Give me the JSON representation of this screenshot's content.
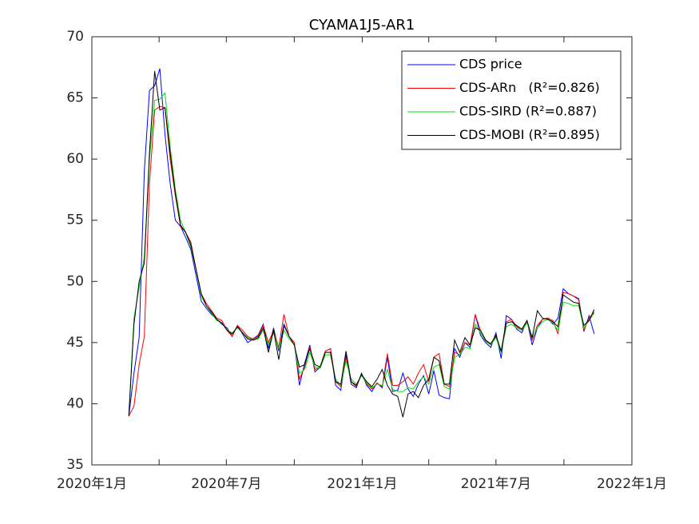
{
  "chart_data": {
    "type": "line",
    "title": "CYAMA1J5-AR1",
    "x": [
      50,
      57,
      64,
      71,
      78,
      85,
      92,
      99,
      106,
      113,
      120,
      127,
      134,
      141,
      148,
      155,
      162,
      169,
      176,
      183,
      190,
      197,
      204,
      211,
      218,
      225,
      232,
      239,
      246,
      253,
      260,
      267,
      274,
      281,
      288,
      295,
      302,
      309,
      316,
      323,
      330,
      337,
      344,
      351,
      358,
      365,
      372,
      379,
      386,
      393,
      400,
      407,
      414,
      421,
      428,
      435,
      442,
      449,
      456,
      463,
      470,
      477,
      484,
      491,
      498,
      505,
      512,
      519,
      526,
      533,
      540,
      547,
      554,
      561,
      568,
      575,
      582,
      589,
      596,
      603,
      610,
      617,
      624,
      631,
      638,
      645,
      652,
      659,
      666,
      673,
      680
    ],
    "series": [
      {
        "name": "CDS price",
        "color": "#0000ff",
        "values": [
          39.0,
          42.5,
          45.4,
          59.0,
          65.6,
          66.0,
          67.4,
          62.0,
          58.0,
          55.0,
          54.5,
          53.6,
          52.6,
          50.5,
          48.4,
          47.8,
          47.3,
          46.9,
          46.5,
          46.2,
          45.5,
          46.4,
          45.7,
          45.0,
          45.3,
          45.6,
          46.5,
          44.5,
          46.2,
          44.3,
          46.5,
          45.5,
          45.0,
          41.5,
          43.3,
          44.8,
          42.6,
          43.0,
          44.3,
          44.5,
          41.5,
          41.1,
          44.0,
          41.6,
          41.3,
          42.5,
          41.5,
          41.0,
          41.7,
          41.3,
          43.8,
          41.0,
          41.1,
          42.5,
          41.2,
          40.6,
          41.6,
          42.3,
          40.8,
          42.7,
          40.7,
          40.5,
          40.4,
          44.5,
          43.8,
          45.0,
          44.6,
          47.3,
          45.6,
          45.0,
          44.6,
          45.8,
          43.7,
          47.2,
          46.9,
          46.1,
          45.8,
          46.8,
          44.8,
          46.2,
          46.9,
          47.0,
          46.5,
          47.0,
          49.4,
          49.0,
          48.8,
          48.6,
          45.9,
          47.2,
          45.7
        ]
      },
      {
        "name": "CDS-ARn   (R²=0.826)",
        "color": "#ff0000",
        "values": [
          39.0,
          39.8,
          43.2,
          45.5,
          58.0,
          64.0,
          64.3,
          64.2,
          60.0,
          57.0,
          54.5,
          54.0,
          53.2,
          51.0,
          49.0,
          48.2,
          47.6,
          47.0,
          46.8,
          46.0,
          45.5,
          46.4,
          46.0,
          45.5,
          45.3,
          45.5,
          46.4,
          45.0,
          46.0,
          44.6,
          47.3,
          45.5,
          45.0,
          42.0,
          43.0,
          44.7,
          42.8,
          43.0,
          44.3,
          44.5,
          41.8,
          41.4,
          43.8,
          41.8,
          41.4,
          42.4,
          41.6,
          41.2,
          41.7,
          41.4,
          44.1,
          41.5,
          41.5,
          41.8,
          42.2,
          41.6,
          42.5,
          43.2,
          41.8,
          43.8,
          44.1,
          41.6,
          41.4,
          44.2,
          44.0,
          45.0,
          44.8,
          47.3,
          46.0,
          45.2,
          44.8,
          45.5,
          44.3,
          46.7,
          46.9,
          46.3,
          46.0,
          46.8,
          45.2,
          46.4,
          46.9,
          47.0,
          46.8,
          45.7,
          49.1,
          49.0,
          48.8,
          48.5,
          46.0,
          47.0,
          47.5
        ]
      },
      {
        "name": "CDS-SIRD (R²=0.887)",
        "color": "#00e000",
        "values": [
          39.0,
          47.0,
          49.5,
          52.0,
          60.0,
          64.8,
          64.9,
          65.4,
          61.0,
          57.5,
          55.0,
          54.0,
          52.8,
          51.0,
          48.8,
          48.0,
          47.4,
          46.8,
          46.6,
          46.0,
          45.8,
          46.2,
          45.8,
          45.4,
          45.2,
          45.3,
          46.0,
          44.8,
          45.8,
          44.5,
          46.0,
          45.3,
          44.8,
          42.5,
          42.8,
          44.2,
          43.0,
          42.9,
          44.0,
          44.0,
          42.0,
          41.5,
          43.5,
          42.0,
          41.6,
          42.3,
          41.7,
          41.3,
          41.6,
          41.5,
          42.8,
          41.2,
          41.0,
          41.0,
          41.3,
          41.2,
          41.8,
          42.2,
          41.6,
          43.0,
          43.2,
          41.4,
          41.2,
          43.8,
          44.0,
          44.6,
          44.5,
          46.5,
          45.8,
          45.1,
          44.8,
          45.4,
          44.2,
          46.3,
          46.5,
          46.2,
          46.0,
          46.6,
          45.4,
          46.2,
          46.7,
          46.9,
          46.6,
          46.0,
          48.3,
          48.2,
          48.0,
          48.0,
          46.2,
          46.8,
          47.4
        ]
      },
      {
        "name": "CDS-MOBI (R²=0.895)",
        "color": "#000000",
        "values": [
          39.0,
          46.5,
          50.0,
          51.5,
          60.5,
          67.2,
          64.0,
          64.2,
          60.5,
          57.2,
          54.6,
          54.0,
          53.0,
          51.0,
          49.0,
          48.0,
          47.5,
          46.9,
          46.6,
          46.0,
          45.7,
          46.3,
          45.8,
          45.3,
          45.2,
          45.4,
          46.2,
          44.2,
          46.0,
          43.6,
          46.4,
          45.5,
          44.8,
          43.0,
          43.2,
          44.5,
          43.2,
          43.0,
          44.2,
          44.2,
          41.8,
          41.6,
          44.3,
          41.8,
          41.5,
          42.4,
          41.8,
          41.4,
          42.0,
          42.8,
          41.5,
          40.8,
          40.6,
          38.9,
          40.8,
          41.0,
          40.5,
          41.5,
          42.0,
          43.8,
          43.5,
          41.6,
          41.6,
          45.2,
          44.2,
          45.4,
          44.8,
          46.2,
          46.0,
          45.2,
          44.9,
          45.6,
          44.3,
          46.6,
          46.7,
          46.4,
          46.1,
          46.8,
          45.4,
          47.6,
          47.0,
          46.9,
          46.7,
          46.3,
          48.9,
          48.6,
          48.3,
          48.2,
          46.4,
          46.8,
          47.7
        ]
      }
    ],
    "xlim": [
      0,
      731
    ],
    "xticks": [
      {
        "value": 0,
        "label": "2020年1月"
      },
      {
        "value": 91,
        "label": null
      },
      {
        "value": 182,
        "label": "2020年7月"
      },
      {
        "value": 274,
        "label": null
      },
      {
        "value": 366,
        "label": "2021年1月"
      },
      {
        "value": 456,
        "label": null
      },
      {
        "value": 547,
        "label": "2021年7月"
      },
      {
        "value": 639,
        "label": null
      },
      {
        "value": 731,
        "label": "2022年1月"
      }
    ],
    "ylim": [
      35,
      70
    ],
    "yticks": [
      35,
      40,
      45,
      50,
      55,
      60,
      65,
      70
    ],
    "grid": false,
    "legend": "upper right"
  }
}
